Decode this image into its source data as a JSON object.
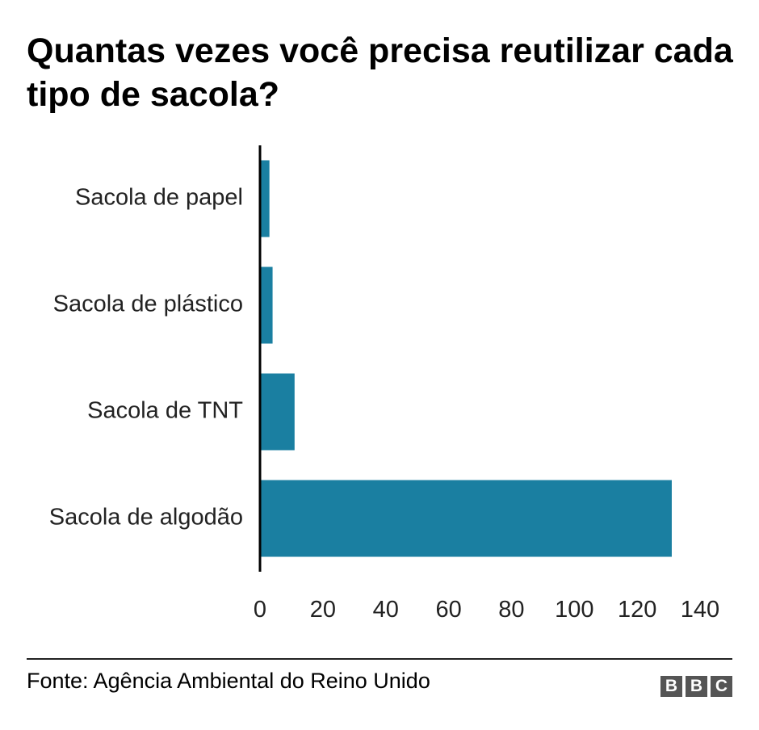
{
  "title": "Quantas vezes você precisa reutilizar cada tipo de sacola?",
  "source": "Fonte: Agência Ambiental do Reino Unido",
  "logo": {
    "letters": [
      "B",
      "B",
      "C"
    ]
  },
  "colors": {
    "bar": "#1a7fa1",
    "axis": "#000000",
    "text": "#222222",
    "logo_bg": "#555555"
  },
  "chart_data": {
    "type": "bar",
    "orientation": "horizontal",
    "categories": [
      "Sacola de papel",
      "Sacola de plástico",
      "Sacola de TNT",
      "Sacola de algodão"
    ],
    "values": [
      3,
      4,
      11,
      131
    ],
    "xlim": [
      0,
      140
    ],
    "xticks": [
      0,
      20,
      40,
      60,
      80,
      100,
      120,
      140
    ],
    "grid": false,
    "legend": "none"
  }
}
